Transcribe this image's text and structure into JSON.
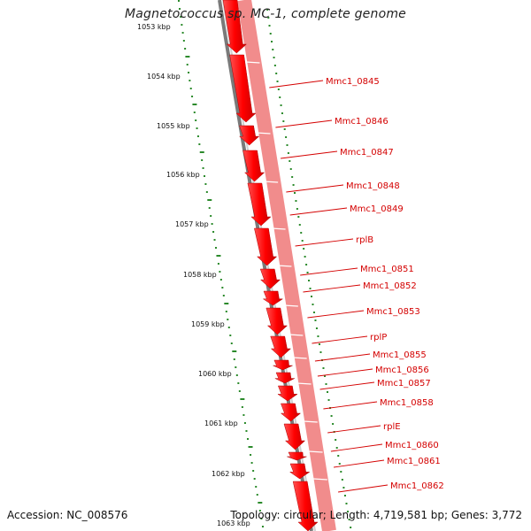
{
  "header": {
    "title": "Magnetococcus sp. MC-1, complete genome"
  },
  "footer": {
    "accession": "Accession: NC_008576",
    "topology": "Topology: circular; Length: 4,719,581 bp; Genes: 3,772"
  },
  "ruler": {
    "ticks": [
      "1053 kbp",
      "1054 kbp",
      "1055 kbp",
      "1056 kbp",
      "1057 kbp",
      "1058 kbp",
      "1059 kbp",
      "1060 kbp",
      "1061 kbp",
      "1062 kbp",
      "1063 kbp"
    ]
  },
  "genes": [
    "Mmc1_0845",
    "Mmc1_0846",
    "Mmc1_0847",
    "Mmc1_0848",
    "Mmc1_0849",
    "rplB",
    "Mmc1_0851",
    "Mmc1_0852",
    "Mmc1_0853",
    "rplP",
    "Mmc1_0855",
    "Mmc1_0856",
    "Mmc1_0857",
    "Mmc1_0858",
    "rplE",
    "Mmc1_0860",
    "Mmc1_0861",
    "Mmc1_0862"
  ],
  "colors": {
    "cds": "#ff0000",
    "cds_track": "#f47f7f",
    "label": "#d40000",
    "backbone": "#888888",
    "ruler_dots": "#2b8a2b"
  }
}
